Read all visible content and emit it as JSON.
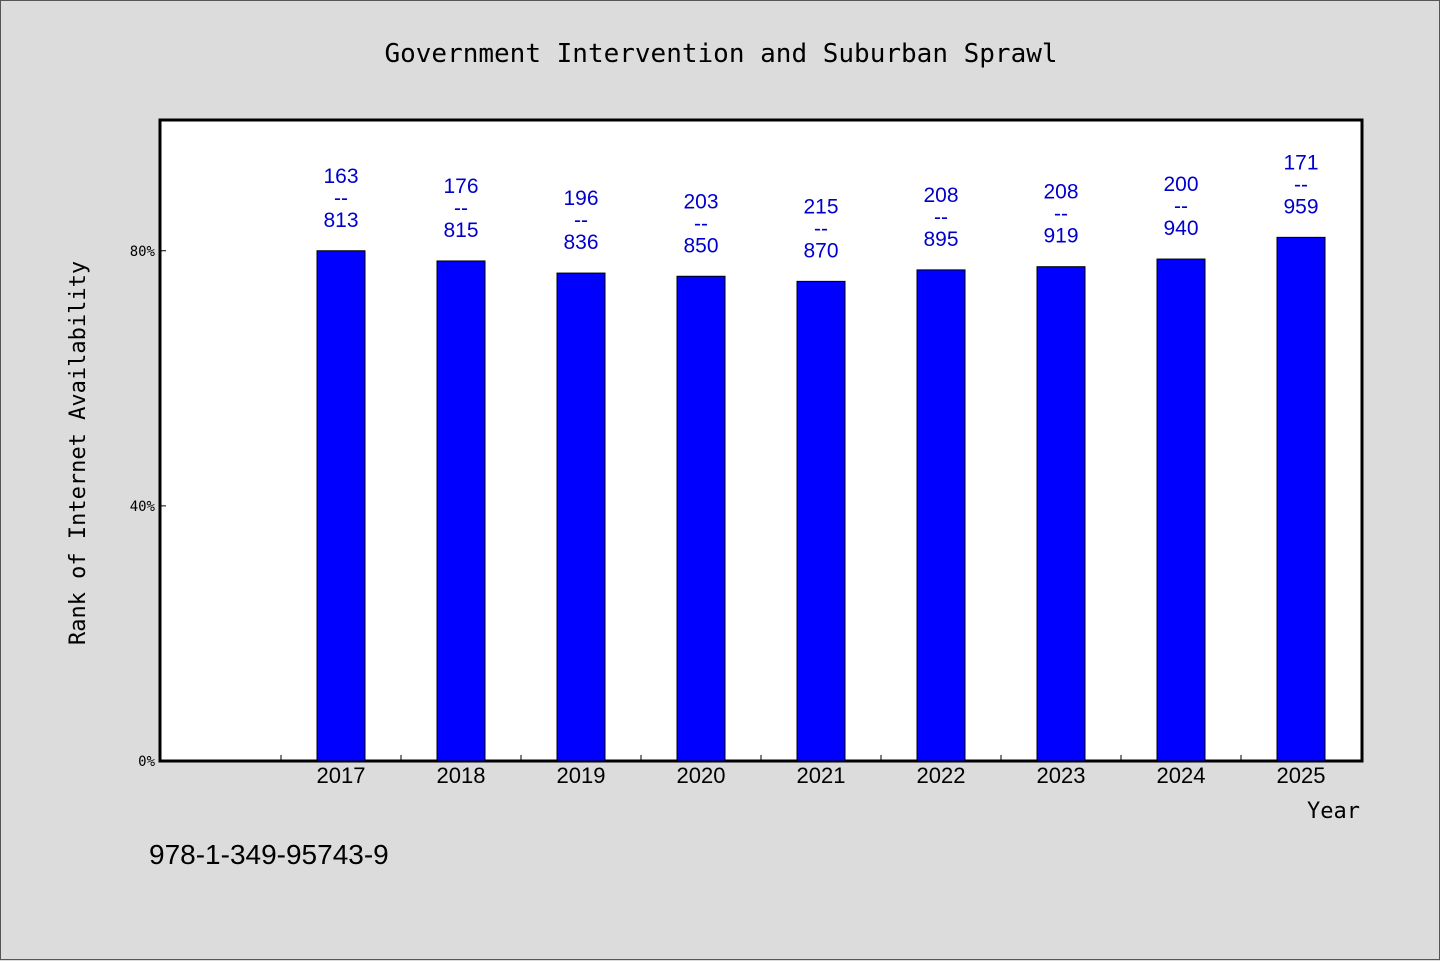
{
  "chart_data": {
    "type": "bar",
    "title": "Government Intervention and Suburban Sprawl",
    "xlabel": "Year",
    "ylabel": "Rank of Internet Availability",
    "categories": [
      "2017",
      "2018",
      "2019",
      "2020",
      "2021",
      "2022",
      "2023",
      "2024",
      "2025"
    ],
    "values": [
      80,
      78.4,
      76.5,
      76,
      75.2,
      77,
      77.5,
      78.7,
      82.1
    ],
    "value_unit": "%",
    "data_labels": [
      {
        "top": "163",
        "sep": "--",
        "bottom": "813"
      },
      {
        "top": "176",
        "sep": "--",
        "bottom": "815"
      },
      {
        "top": "196",
        "sep": "--",
        "bottom": "836"
      },
      {
        "top": "203",
        "sep": "--",
        "bottom": "850"
      },
      {
        "top": "215",
        "sep": "--",
        "bottom": "870"
      },
      {
        "top": "208",
        "sep": "--",
        "bottom": "895"
      },
      {
        "top": "208",
        "sep": "--",
        "bottom": "919"
      },
      {
        "top": "200",
        "sep": "--",
        "bottom": "940"
      },
      {
        "top": "171",
        "sep": "--",
        "bottom": "959"
      }
    ],
    "yticks": [
      {
        "value": 0,
        "label": "0%"
      },
      {
        "value": 40,
        "label": "40%"
      },
      {
        "value": 80,
        "label": "80%"
      }
    ],
    "ylim": [
      0,
      100.5
    ],
    "legend": "none",
    "grid": false,
    "colors": {
      "bar": "#0000ff",
      "bar_edge": "#000000",
      "data_label": "#0000cc",
      "plot_bg": "#ffffff",
      "page_bg": "#dcdcdc"
    }
  },
  "footnote": "978-1-349-95743-9"
}
